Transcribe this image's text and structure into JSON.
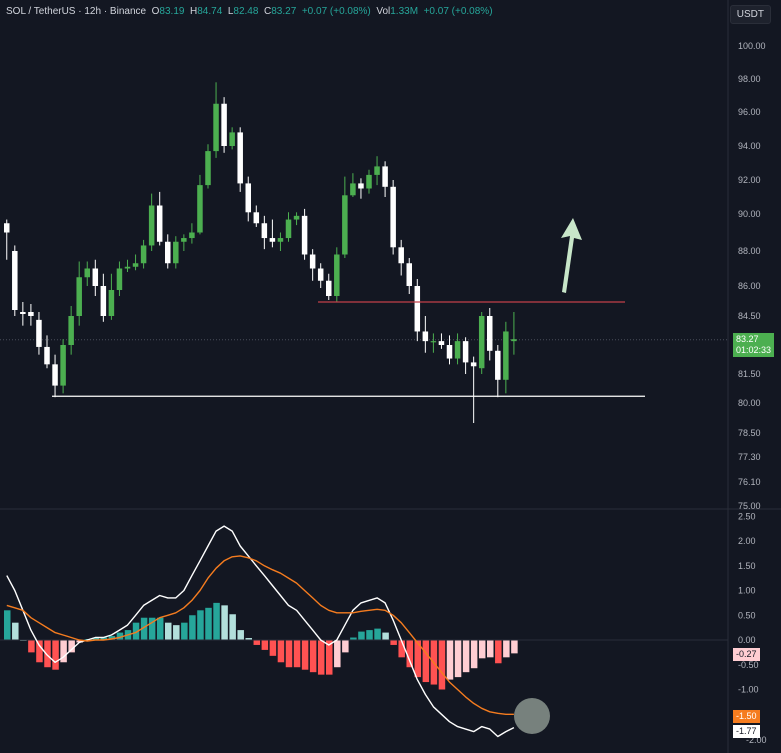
{
  "header": {
    "symbol": "SOL / TetherUS · 12h · Binance",
    "o_label": "O",
    "o_value": "83.19",
    "h_label": "H",
    "h_value": "84.74",
    "l_label": "L",
    "l_value": "82.48",
    "c_label": "C",
    "c_value": "83.27",
    "change": "+0.07 (+0.08%)",
    "vol_label": "Vol",
    "vol_value": "1.33M",
    "vol_change": "+0.07 (+0.08%)"
  },
  "currency_button": "USDT",
  "price_tags": {
    "last": "83.27",
    "countdown": "01:02:33"
  },
  "macd_tags": {
    "hist": "-0.27",
    "signal": "-1.50",
    "macd": "-1.77"
  },
  "colors": {
    "bg": "#131722",
    "bull": "#4caf50",
    "bear": "#ffffff",
    "resistance": "#c2404a",
    "support": "#ffffff",
    "macd_line": "#ffffff",
    "signal_line": "#f57c1f",
    "hist_pos_strong": "#26a69a",
    "hist_pos_weak": "#b2dfdb",
    "hist_neg_strong": "#ff5252",
    "hist_neg_weak": "#ffcdd2",
    "arrow": "#c8e6c9"
  },
  "chart_data": [
    {
      "type": "candlestick",
      "title": "SOL / TetherUS · 12h · Binance",
      "y_ticks": [
        "100.00",
        "98.00",
        "96.00",
        "94.00",
        "92.00",
        "90.00",
        "88.00",
        "86.00",
        "84.50",
        "83.27",
        "81.50",
        "80.00",
        "78.50",
        "77.30",
        "76.10",
        "75.00"
      ],
      "ylim": [
        75,
        101
      ],
      "candles": [
        [
          89.5,
          89.0,
          89.7,
          87.5
        ],
        [
          88.0,
          84.8,
          88.3,
          84.5
        ],
        [
          84.7,
          84.6,
          85.2,
          84.0
        ],
        [
          84.7,
          84.5,
          85.1,
          84.0
        ],
        [
          84.3,
          82.9,
          84.7,
          82.5
        ],
        [
          82.9,
          82.0,
          83.5,
          81.8
        ],
        [
          82.0,
          80.9,
          82.5,
          80.3
        ],
        [
          80.9,
          83.0,
          83.3,
          80.5
        ],
        [
          83.0,
          84.5,
          85.0,
          82.5
        ],
        [
          84.5,
          86.5,
          87.4,
          84.0
        ],
        [
          86.5,
          87.0,
          87.4,
          86.0
        ],
        [
          87.0,
          86.0,
          87.5,
          85.5
        ],
        [
          86.0,
          84.5,
          86.7,
          84.2
        ],
        [
          84.5,
          85.8,
          86.7,
          84.3
        ],
        [
          85.8,
          87.0,
          87.4,
          85.5
        ],
        [
          87.0,
          87.1,
          87.5,
          86.8
        ],
        [
          87.1,
          87.3,
          87.8,
          86.9
        ],
        [
          87.3,
          88.3,
          88.6,
          87.0
        ],
        [
          88.3,
          90.5,
          91.2,
          88.0
        ],
        [
          90.5,
          88.5,
          91.3,
          88.3
        ],
        [
          88.5,
          87.3,
          88.9,
          87.0
        ],
        [
          87.3,
          88.5,
          88.8,
          87.0
        ],
        [
          88.5,
          88.7,
          88.9,
          88.0
        ],
        [
          88.7,
          89.0,
          89.5,
          88.4
        ],
        [
          89.0,
          91.7,
          92.3,
          88.9
        ],
        [
          91.7,
          93.7,
          94.1,
          91.5
        ],
        [
          93.7,
          96.5,
          97.8,
          93.3
        ],
        [
          96.5,
          94.0,
          96.9,
          93.6
        ],
        [
          94.0,
          94.8,
          95.1,
          93.8
        ],
        [
          94.8,
          91.8,
          95.1,
          91.3
        ],
        [
          91.8,
          90.1,
          92.2,
          89.6
        ],
        [
          90.1,
          89.5,
          90.5,
          89.3
        ],
        [
          89.5,
          88.7,
          89.9,
          88.1
        ],
        [
          88.7,
          88.5,
          89.7,
          88.2
        ],
        [
          88.5,
          88.7,
          89.0,
          88.0
        ],
        [
          88.7,
          89.7,
          90.1,
          88.5
        ],
        [
          89.7,
          89.9,
          90.1,
          89.4
        ],
        [
          89.9,
          87.8,
          90.3,
          87.5
        ],
        [
          87.8,
          87.0,
          88.1,
          86.3
        ],
        [
          87.0,
          86.3,
          87.3,
          85.9
        ],
        [
          86.3,
          85.5,
          86.7,
          85.3
        ],
        [
          85.5,
          87.8,
          88.2,
          85.2
        ],
        [
          87.8,
          91.1,
          92.2,
          87.6
        ],
        [
          91.1,
          91.8,
          92.4,
          91.0
        ],
        [
          91.8,
          91.5,
          92.1,
          90.9
        ],
        [
          91.5,
          92.3,
          92.6,
          91.2
        ],
        [
          92.3,
          92.8,
          93.4,
          91.7
        ],
        [
          92.8,
          91.6,
          93.1,
          91.0
        ],
        [
          91.6,
          88.2,
          92.0,
          87.8
        ],
        [
          88.2,
          87.3,
          88.6,
          86.6
        ],
        [
          87.3,
          86.0,
          87.6,
          85.6
        ],
        [
          86.0,
          83.7,
          86.4,
          83.2
        ],
        [
          83.7,
          83.2,
          84.5,
          82.6
        ],
        [
          83.2,
          83.2,
          83.6,
          82.6
        ],
        [
          83.2,
          83.0,
          83.6,
          82.8
        ],
        [
          83.0,
          82.3,
          83.5,
          82.0
        ],
        [
          82.3,
          83.2,
          83.6,
          82.0
        ],
        [
          83.2,
          82.1,
          83.4,
          81.5
        ],
        [
          82.1,
          81.9,
          82.4,
          79.0
        ],
        [
          81.8,
          84.5,
          84.7,
          81.5
        ],
        [
          84.5,
          82.7,
          84.9,
          82.2
        ],
        [
          82.7,
          81.2,
          83.0,
          80.3
        ],
        [
          81.2,
          83.7,
          84.2,
          80.5
        ],
        [
          83.2,
          83.3,
          84.7,
          82.5
        ]
      ],
      "horizontal_lines": [
        {
          "price": 85.2,
          "color": "resistance"
        },
        {
          "price": 80.35,
          "color": "support"
        }
      ],
      "current_price": 83.27
    },
    {
      "type": "line",
      "title": "MACD",
      "y_ticks": [
        "2.50",
        "2.00",
        "1.50",
        "1.00",
        "0.50",
        "0.00",
        "-0.50",
        "-1.00",
        "-1.50",
        "-2.00"
      ],
      "ylim": [
        -2.25,
        2.5
      ],
      "series": [
        {
          "name": "",
          "values": [
            1.3,
            1.0,
            0.6,
            0.2,
            -0.1,
            -0.3,
            -0.45,
            -0.35,
            -0.2,
            -0.05,
            0.0,
            0.05,
            0.05,
            0.1,
            0.2,
            0.3,
            0.5,
            0.7,
            0.8,
            0.9,
            0.85,
            0.85,
            1.0,
            1.3,
            1.6,
            1.9,
            2.2,
            2.3,
            2.2,
            1.9,
            1.7,
            1.5,
            1.3,
            1.1,
            0.9,
            0.7,
            0.6,
            0.4,
            0.2,
            0.0,
            -0.1,
            0.0,
            0.3,
            0.6,
            0.75,
            0.8,
            0.85,
            0.75,
            0.4,
            0.0,
            -0.4,
            -0.8,
            -1.1,
            -1.35,
            -1.5,
            -1.65,
            -1.75,
            -1.8,
            -1.85,
            -1.75,
            -1.8,
            -1.95,
            -1.85,
            -1.77
          ]
        },
        {
          "name": "",
          "values": [
            0.7,
            0.65,
            0.6,
            0.45,
            0.35,
            0.25,
            0.15,
            0.1,
            0.05,
            0.0,
            -0.02,
            0.0,
            0.0,
            0.02,
            0.05,
            0.1,
            0.15,
            0.25,
            0.35,
            0.45,
            0.5,
            0.55,
            0.65,
            0.8,
            1.0,
            1.25,
            1.45,
            1.6,
            1.68,
            1.7,
            1.66,
            1.6,
            1.5,
            1.42,
            1.35,
            1.25,
            1.15,
            1.0,
            0.85,
            0.7,
            0.6,
            0.55,
            0.55,
            0.55,
            0.58,
            0.6,
            0.62,
            0.6,
            0.5,
            0.35,
            0.15,
            -0.05,
            -0.25,
            -0.45,
            -0.65,
            -0.85,
            -1.0,
            -1.15,
            -1.28,
            -1.38,
            -1.45,
            -1.48,
            -1.5,
            -1.5
          ]
        }
      ],
      "histogram": [
        0.6,
        0.35,
        0.0,
        -0.25,
        -0.45,
        -0.55,
        -0.6,
        -0.45,
        -0.25,
        -0.05,
        0.02,
        0.05,
        0.05,
        0.08,
        0.15,
        0.2,
        0.35,
        0.45,
        0.45,
        0.45,
        0.35,
        0.3,
        0.35,
        0.5,
        0.6,
        0.65,
        0.75,
        0.7,
        0.52,
        0.2,
        0.04,
        -0.1,
        -0.2,
        -0.32,
        -0.45,
        -0.55,
        -0.55,
        -0.6,
        -0.65,
        -0.7,
        -0.7,
        -0.55,
        -0.25,
        0.05,
        0.17,
        0.2,
        0.23,
        0.15,
        -0.1,
        -0.35,
        -0.55,
        -0.75,
        -0.85,
        -0.9,
        -1.0,
        -0.8,
        -0.75,
        -0.65,
        -0.57,
        -0.37,
        -0.35,
        -0.47,
        -0.35,
        -0.27
      ]
    }
  ]
}
